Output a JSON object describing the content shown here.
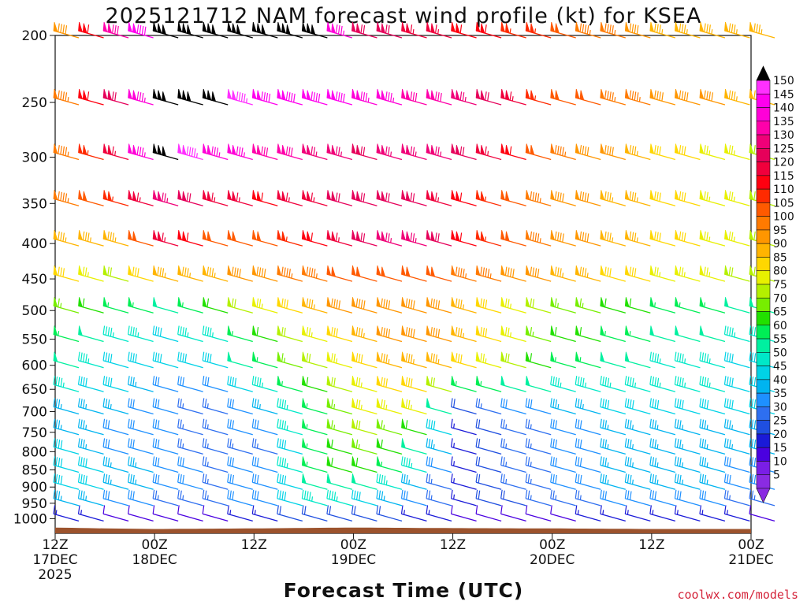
{
  "chart_data": {
    "type": "wind-barb-profile",
    "title": "2025121712 NAM forecast wind profile (kt) for KSEA",
    "xlabel": "Forecast Time (UTC)",
    "credit": "coolwx.com/models",
    "x_ticks": [
      {
        "hour": 0,
        "line1": "12Z",
        "line2": "17DEC",
        "line3": "2025"
      },
      {
        "hour": 12,
        "line1": "00Z",
        "line2": "18DEC",
        "line3": ""
      },
      {
        "hour": 24,
        "line1": "12Z",
        "line2": "",
        "line3": ""
      },
      {
        "hour": 36,
        "line1": "00Z",
        "line2": "19DEC",
        "line3": ""
      },
      {
        "hour": 48,
        "line1": "12Z",
        "line2": "",
        "line3": ""
      },
      {
        "hour": 60,
        "line1": "00Z",
        "line2": "20DEC",
        "line3": ""
      },
      {
        "hour": 72,
        "line1": "12Z",
        "line2": "",
        "line3": ""
      },
      {
        "hour": 84,
        "line1": "00Z",
        "line2": "21DEC",
        "line3": ""
      }
    ],
    "xlim": [
      0,
      84
    ],
    "ylabel": "",
    "y_scale": "log-pressure",
    "ylim_hpa": [
      1050,
      200
    ],
    "levels_hpa": [
      200,
      250,
      300,
      350,
      400,
      450,
      500,
      550,
      600,
      650,
      700,
      750,
      800,
      850,
      900,
      950,
      1000
    ],
    "forecast_hours": [
      0,
      3,
      6,
      9,
      12,
      15,
      18,
      21,
      24,
      27,
      30,
      33,
      36,
      39,
      42,
      45,
      48,
      51,
      54,
      57,
      60,
      63,
      66,
      69,
      72,
      75,
      78,
      81,
      84
    ],
    "colorbar": {
      "ticks": [
        150,
        145,
        140,
        135,
        130,
        125,
        120,
        115,
        110,
        105,
        100,
        95,
        90,
        85,
        80,
        75,
        70,
        65,
        60,
        55,
        50,
        45,
        40,
        35,
        30,
        25,
        20,
        15,
        10,
        5
      ],
      "bins": [
        {
          "lo": 0,
          "color": "#8a2be2"
        },
        {
          "lo": 5,
          "color": "#7a1ee6"
        },
        {
          "lo": 10,
          "color": "#4a00e0"
        },
        {
          "lo": 15,
          "color": "#1a1ad8"
        },
        {
          "lo": 20,
          "color": "#1f4fe0"
        },
        {
          "lo": 25,
          "color": "#2e6ff0"
        },
        {
          "lo": 30,
          "color": "#1e90ff"
        },
        {
          "lo": 35,
          "color": "#00b4f0"
        },
        {
          "lo": 40,
          "color": "#00d2e6"
        },
        {
          "lo": 45,
          "color": "#00e8c8"
        },
        {
          "lo": 50,
          "color": "#00f0a0"
        },
        {
          "lo": 55,
          "color": "#00ee55"
        },
        {
          "lo": 60,
          "color": "#22e000"
        },
        {
          "lo": 65,
          "color": "#77ee00"
        },
        {
          "lo": 70,
          "color": "#b4f000"
        },
        {
          "lo": 75,
          "color": "#e8f000"
        },
        {
          "lo": 80,
          "color": "#ffd700"
        },
        {
          "lo": 85,
          "color": "#ffb400"
        },
        {
          "lo": 90,
          "color": "#ff9600"
        },
        {
          "lo": 95,
          "color": "#ff7a00"
        },
        {
          "lo": 100,
          "color": "#ff5a00"
        },
        {
          "lo": 105,
          "color": "#ff2a00"
        },
        {
          "lo": 110,
          "color": "#ff0010"
        },
        {
          "lo": 115,
          "color": "#f0003c"
        },
        {
          "lo": 120,
          "color": "#e6005a"
        },
        {
          "lo": 125,
          "color": "#f00078"
        },
        {
          "lo": 130,
          "color": "#ff00aa"
        },
        {
          "lo": 135,
          "color": "#ff00d8"
        },
        {
          "lo": 140,
          "color": "#ff00ee"
        },
        {
          "lo": 145,
          "color": "#ff30ff"
        }
      ],
      "over_color": "#000000",
      "under_color": "#8a2be2"
    },
    "level_speed_profiles_kt": {
      "200": {
        "hours": [
          0,
          6,
          12,
          18,
          24,
          30,
          36,
          42,
          48,
          60,
          72,
          84
        ],
        "speed": [
          88,
          130,
          150,
          150,
          150,
          150,
          120,
          115,
          110,
          100,
          85,
          85
        ]
      },
      "250": {
        "hours": [
          0,
          6,
          12,
          18,
          24,
          30,
          36,
          42,
          48,
          60,
          72,
          84
        ],
        "speed": [
          95,
          120,
          150,
          150,
          140,
          140,
          135,
          130,
          125,
          100,
          90,
          85
        ]
      },
      "300": {
        "hours": [
          0,
          6,
          12,
          18,
          24,
          30,
          36,
          42,
          48,
          60,
          72,
          84
        ],
        "speed": [
          95,
          115,
          150,
          135,
          130,
          125,
          120,
          125,
          120,
          95,
          80,
          70
        ]
      },
      "350": {
        "hours": [
          0,
          6,
          12,
          18,
          24,
          30,
          36,
          42,
          48,
          60,
          72,
          84
        ],
        "speed": [
          95,
          105,
          125,
          115,
          110,
          115,
          120,
          120,
          110,
          90,
          80,
          70
        ]
      },
      "400": {
        "hours": [
          0,
          6,
          12,
          18,
          24,
          30,
          36,
          42,
          48,
          60,
          72,
          84
        ],
        "speed": [
          85,
          85,
          115,
          100,
          100,
          110,
          120,
          125,
          110,
          90,
          80,
          72
        ]
      },
      "450": {
        "hours": [
          0,
          6,
          12,
          18,
          24,
          30,
          36,
          42,
          48,
          60,
          72,
          84
        ],
        "speed": [
          80,
          70,
          85,
          85,
          90,
          95,
          100,
          100,
          95,
          85,
          75,
          70
        ]
      },
      "500": {
        "hours": [
          0,
          6,
          12,
          18,
          24,
          30,
          36,
          42,
          48,
          60,
          72,
          84
        ],
        "speed": [
          65,
          55,
          50,
          60,
          75,
          85,
          90,
          90,
          85,
          65,
          55,
          50
        ]
      },
      "550": {
        "hours": [
          0,
          6,
          12,
          18,
          24,
          30,
          36,
          42,
          48,
          60,
          72,
          84
        ],
        "speed": [
          55,
          45,
          40,
          45,
          60,
          75,
          85,
          90,
          85,
          60,
          50,
          45
        ]
      },
      "600": {
        "hours": [
          0,
          6,
          12,
          18,
          24,
          30,
          36,
          42,
          48,
          60,
          72,
          84
        ],
        "speed": [
          50,
          42,
          38,
          40,
          55,
          70,
          80,
          85,
          80,
          55,
          45,
          40
        ]
      },
      "650": {
        "hours": [
          0,
          6,
          12,
          18,
          24,
          30,
          36,
          42,
          48,
          60,
          72,
          84
        ],
        "speed": [
          45,
          38,
          32,
          30,
          45,
          60,
          75,
          80,
          55,
          45,
          45,
          40
        ]
      },
      "700": {
        "hours": [
          0,
          6,
          12,
          18,
          24,
          30,
          36,
          42,
          48,
          60,
          72,
          84
        ],
        "speed": [
          35,
          35,
          28,
          25,
          35,
          55,
          75,
          75,
          20,
          35,
          40,
          40
        ]
      },
      "750": {
        "hours": [
          0,
          6,
          12,
          18,
          24,
          30,
          36,
          42,
          48,
          60,
          72,
          84
        ],
        "speed": [
          35,
          32,
          28,
          25,
          30,
          55,
          70,
          60,
          15,
          30,
          35,
          35
        ]
      },
      "800": {
        "hours": [
          0,
          6,
          12,
          18,
          24,
          30,
          36,
          42,
          48,
          60,
          72,
          84
        ],
        "speed": [
          40,
          32,
          28,
          25,
          25,
          55,
          65,
          50,
          15,
          30,
          35,
          35
        ]
      },
      "850": {
        "hours": [
          0,
          6,
          12,
          18,
          24,
          30,
          36,
          42,
          48,
          60,
          72,
          84
        ],
        "speed": [
          40,
          35,
          30,
          25,
          30,
          55,
          60,
          45,
          15,
          30,
          35,
          30
        ]
      },
      "900": {
        "hours": [
          0,
          6,
          12,
          18,
          24,
          30,
          36,
          42,
          48,
          60,
          72,
          84
        ],
        "speed": [
          40,
          35,
          30,
          25,
          30,
          50,
          50,
          35,
          15,
          30,
          35,
          30
        ]
      },
      "950": {
        "hours": [
          0,
          6,
          12,
          18,
          24,
          30,
          36,
          42,
          48,
          60,
          72,
          84
        ],
        "speed": [
          35,
          30,
          25,
          25,
          30,
          45,
          40,
          30,
          15,
          25,
          30,
          25
        ]
      },
      "1000": {
        "hours": [
          0,
          6,
          12,
          18,
          24,
          30,
          36,
          42,
          48,
          60,
          72,
          84
        ],
        "speed": [
          15,
          12,
          10,
          12,
          15,
          20,
          20,
          15,
          10,
          12,
          15,
          12
        ]
      }
    },
    "ground_pressure_hpa": {
      "hours": [
        0,
        6,
        12,
        24,
        36,
        48,
        60,
        72,
        84
      ],
      "value": [
        1030,
        1033,
        1035,
        1033,
        1030,
        1032,
        1033,
        1035,
        1035
      ]
    }
  }
}
